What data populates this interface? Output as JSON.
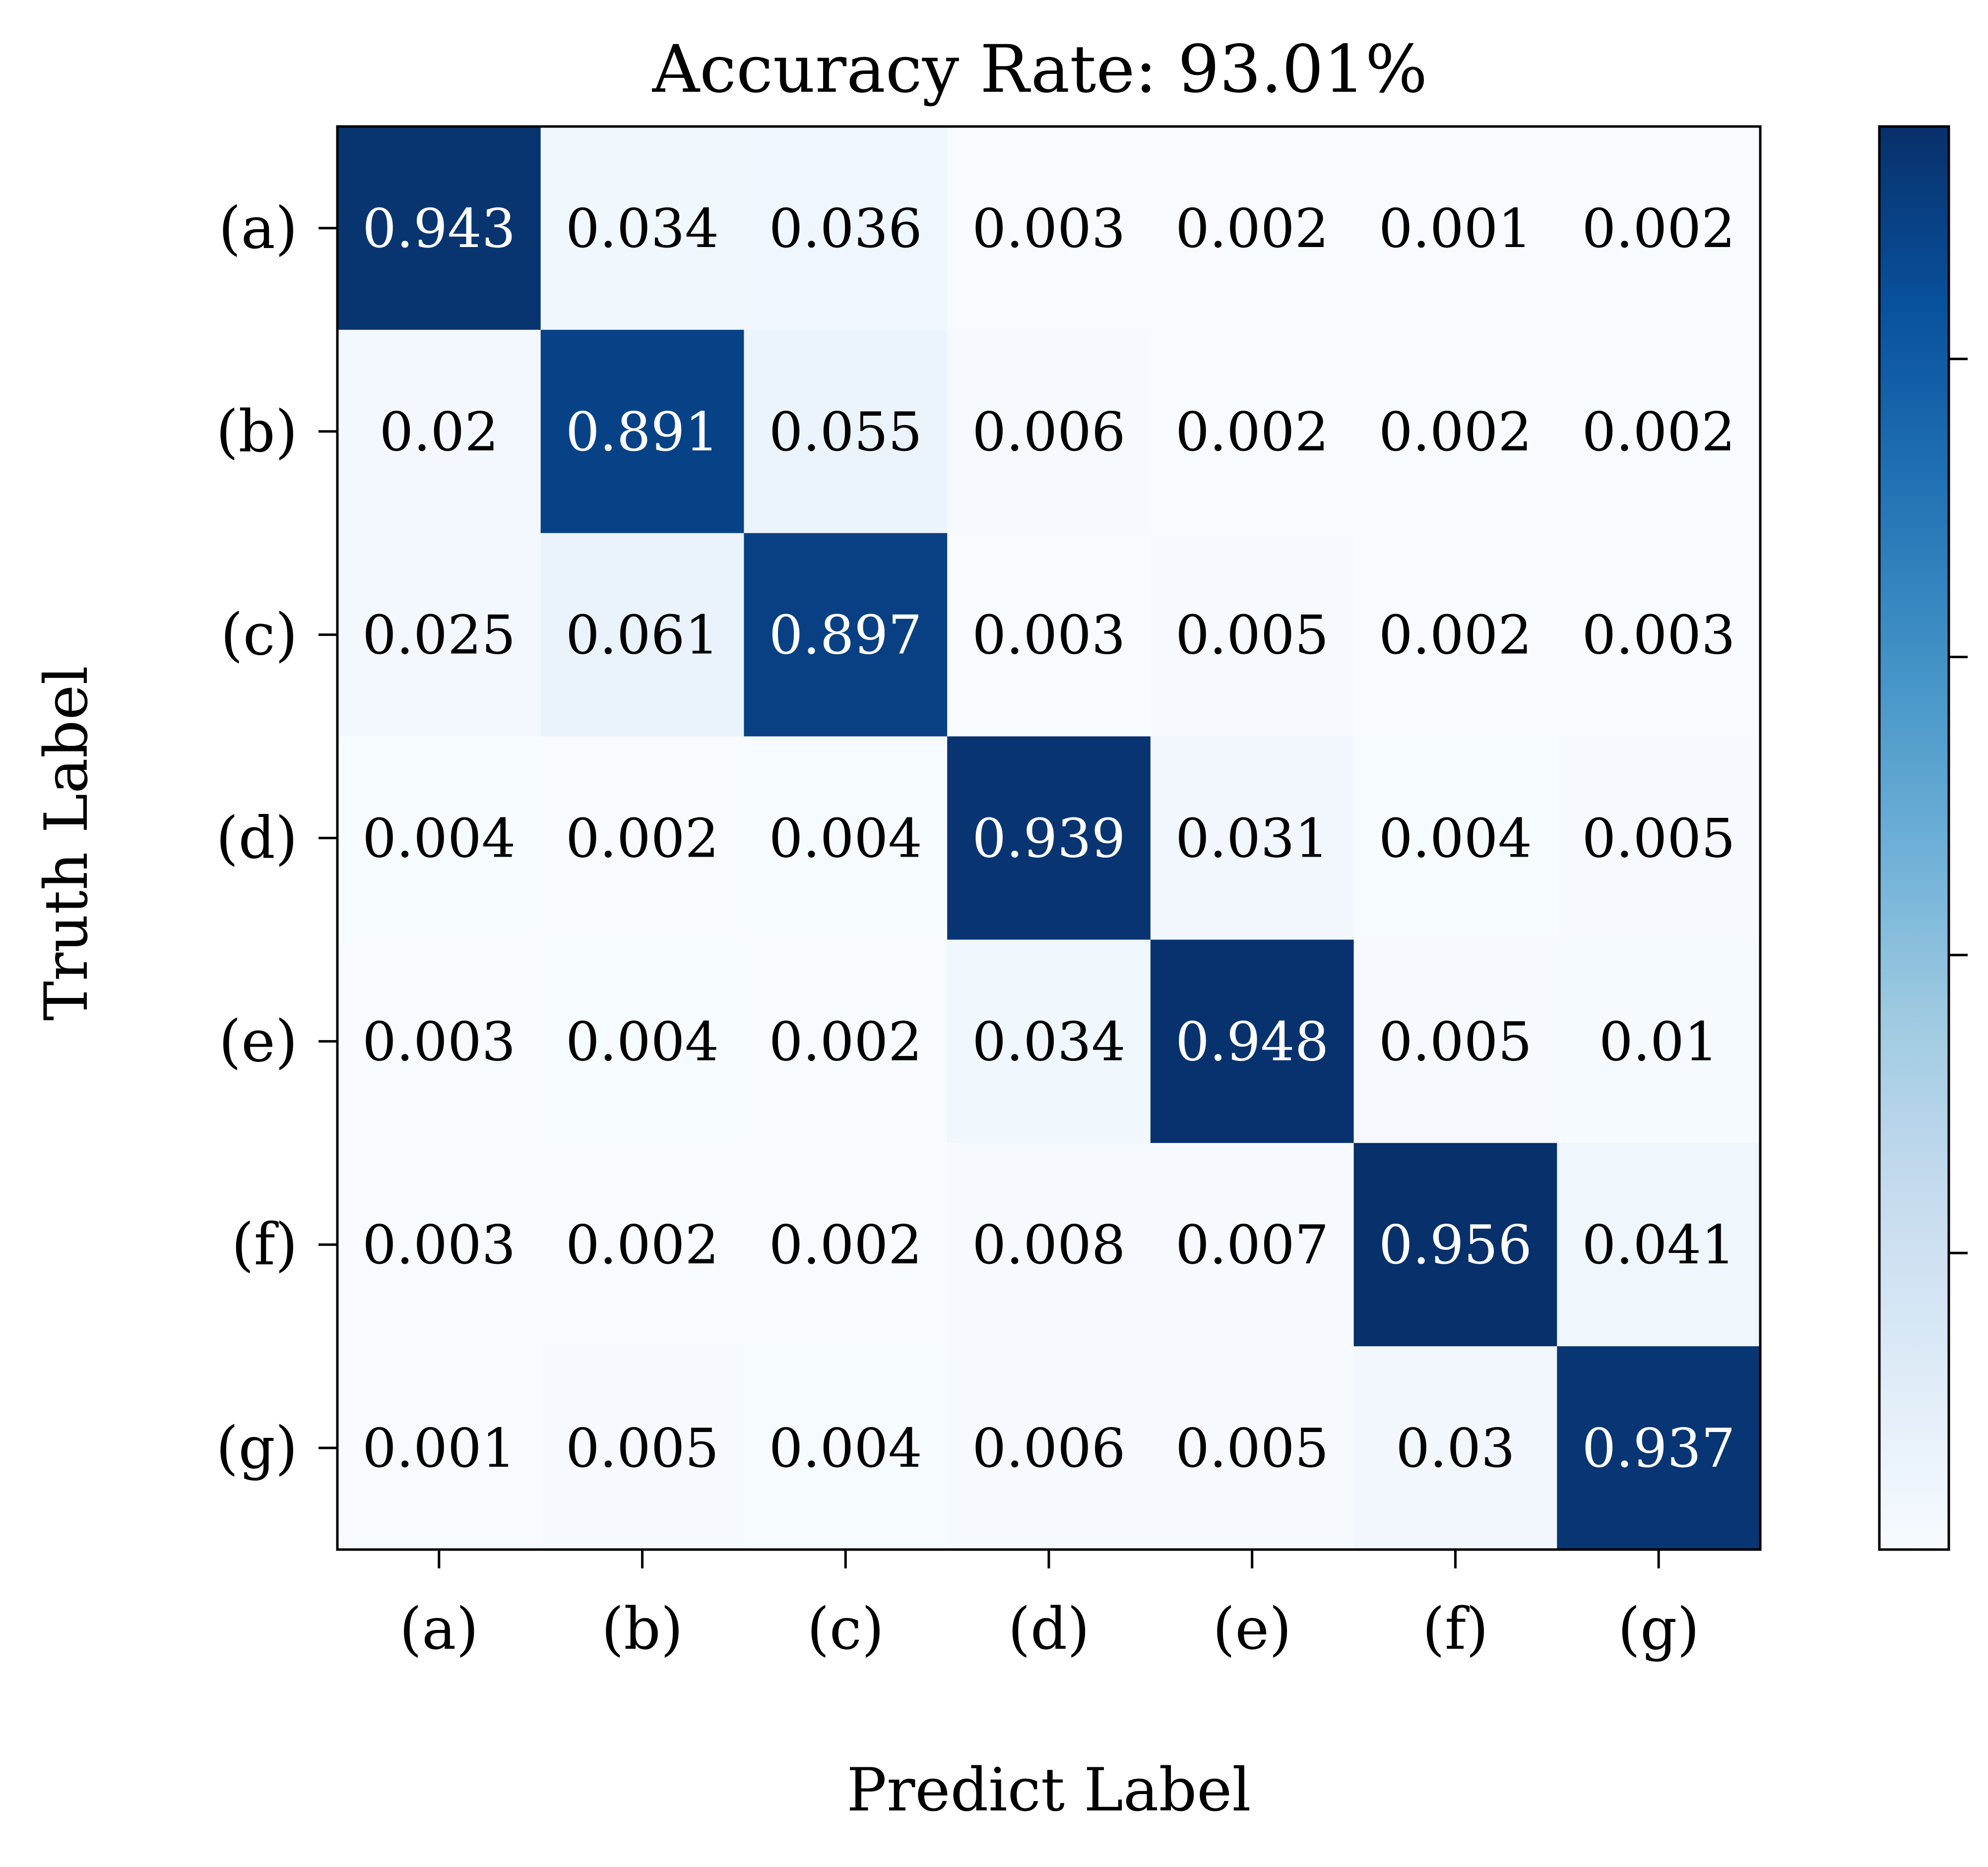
{
  "chart_data": {
    "type": "heatmap",
    "title": "Accuracy Rate: 93.01%",
    "xlabel": "Predict Label",
    "ylabel": "Truth Label",
    "x_categories": [
      "(a)",
      "(b)",
      "(c)",
      "(d)",
      "(e)",
      "(f)",
      "(g)"
    ],
    "y_categories": [
      "(a)",
      "(b)",
      "(c)",
      "(d)",
      "(e)",
      "(f)",
      "(g)"
    ],
    "values": [
      [
        0.943,
        0.034,
        0.036,
        0.003,
        0.002,
        0.001,
        0.002
      ],
      [
        0.02,
        0.891,
        0.055,
        0.006,
        0.002,
        0.002,
        0.002
      ],
      [
        0.025,
        0.061,
        0.897,
        0.003,
        0.005,
        0.002,
        0.003
      ],
      [
        0.004,
        0.002,
        0.004,
        0.939,
        0.031,
        0.004,
        0.005
      ],
      [
        0.003,
        0.004,
        0.002,
        0.034,
        0.948,
        0.005,
        0.01
      ],
      [
        0.003,
        0.002,
        0.002,
        0.008,
        0.007,
        0.956,
        0.041
      ],
      [
        0.001,
        0.005,
        0.004,
        0.006,
        0.005,
        0.03,
        0.937
      ]
    ],
    "value_labels": [
      [
        "0.943",
        "0.034",
        "0.036",
        "0.003",
        "0.002",
        "0.001",
        "0.002"
      ],
      [
        "0.02",
        "0.891",
        "0.055",
        "0.006",
        "0.002",
        "0.002",
        "0.002"
      ],
      [
        "0.025",
        "0.061",
        "0.897",
        "0.003",
        "0.005",
        "0.002",
        "0.003"
      ],
      [
        "0.004",
        "0.002",
        "0.004",
        "0.939",
        "0.031",
        "0.004",
        "0.005"
      ],
      [
        "0.003",
        "0.004",
        "0.002",
        "0.034",
        "0.948",
        "0.005",
        "0.01"
      ],
      [
        "0.003",
        "0.002",
        "0.002",
        "0.008",
        "0.007",
        "0.956",
        "0.041"
      ],
      [
        "0.001",
        "0.005",
        "0.004",
        "0.006",
        "0.005",
        "0.03",
        "0.937"
      ]
    ],
    "colormap": "Blues",
    "colorbar": {
      "position": "right",
      "min": 0.001,
      "max": 0.956,
      "tick_labels_shown": false
    },
    "grid": false
  }
}
